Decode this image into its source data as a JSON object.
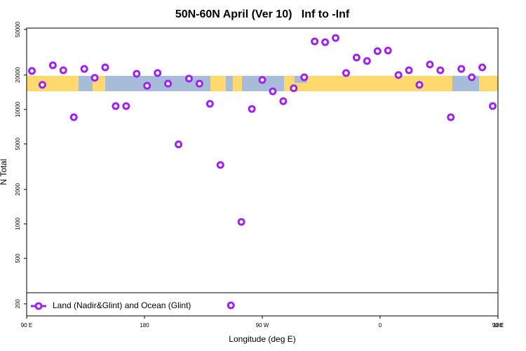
{
  "chart_data": {
    "type": "scatter",
    "title": "50N-60N April (Ver 10)   Inf to -Inf",
    "x_label": "Longitude (deg E)",
    "y_label": "N Total",
    "y_log": true,
    "color": "#a020f0",
    "legend_position": "bottom",
    "xlim": [
      90,
      450
    ],
    "xticks": [
      {
        "value": 90,
        "label": "90 E"
      },
      180,
      {
        "value": 270,
        "label": "90 W"
      },
      {
        "value": 360,
        "label": "0"
      },
      {
        "value": 450,
        "label": "90 E"
      },
      {
        "value": 540,
        "label": "180"
      }
    ],
    "ylim": [
      157,
      51400
    ],
    "yticks": [
      200,
      500,
      1000,
      2000,
      5000,
      10000,
      20000,
      50000
    ],
    "series": [
      {
        "name": "Land (Nadir&Glint) and Ocean (Glint)",
        "color": "#a020f0",
        "x": [
          94,
          102,
          110,
          118,
          126,
          134,
          142,
          150,
          158,
          166,
          174,
          182,
          190,
          198,
          206,
          214,
          222,
          230,
          238,
          246,
          254,
          262,
          270,
          278,
          286,
          294,
          302,
          310,
          318,
          326,
          334,
          342,
          350,
          358,
          366,
          374,
          382,
          390,
          398,
          406,
          414,
          422,
          430,
          438,
          446
        ],
        "values": [
          21700,
          16400,
          24300,
          22000,
          8550,
          22600,
          18900,
          23300,
          10700,
          10700,
          20500,
          16100,
          20800,
          16800,
          4950,
          18600,
          16800,
          11200,
          3270,
          194,
          1040,
          10100,
          18100,
          14400,
          11800,
          15300,
          19100,
          39300,
          38700,
          42100,
          20800,
          28400,
          26500,
          32300,
          32700,
          20000,
          22000,
          16400,
          24700,
          22000,
          8550,
          22600,
          19100,
          23300,
          10700
        ]
      }
    ]
  }
}
